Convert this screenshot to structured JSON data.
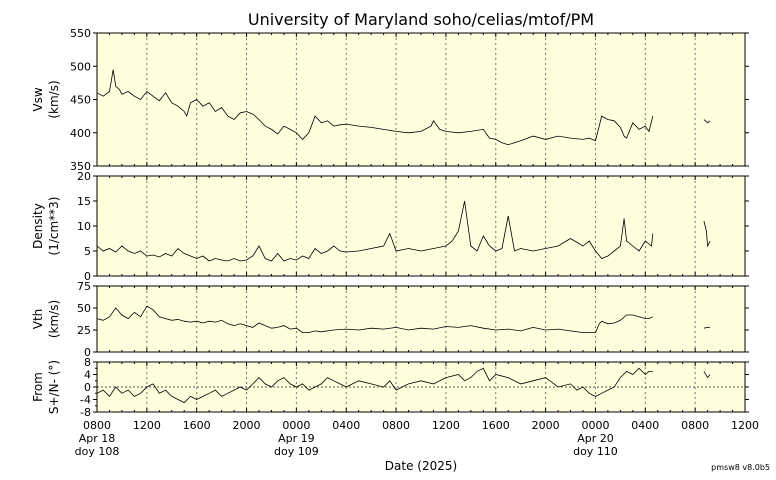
{
  "chart_data": {
    "type": "line",
    "title": "University of Maryland  soho/celias/mtof/PM",
    "xlabel": "Date (2025)",
    "version_label": "pmsw8 v8.0b5",
    "x_range_hours": [
      0,
      52
    ],
    "x_ticks": [
      {
        "hour": 0,
        "label": "0800",
        "sub": [
          "Apr 18",
          "doy 108"
        ]
      },
      {
        "hour": 4,
        "label": "1200"
      },
      {
        "hour": 8,
        "label": "1600"
      },
      {
        "hour": 12,
        "label": "2000"
      },
      {
        "hour": 16,
        "label": "0000",
        "sub": [
          "Apr 19",
          "doy 109"
        ]
      },
      {
        "hour": 20,
        "label": "0400"
      },
      {
        "hour": 24,
        "label": "0800"
      },
      {
        "hour": 28,
        "label": "1200"
      },
      {
        "hour": 32,
        "label": "1600"
      },
      {
        "hour": 36,
        "label": "2000"
      },
      {
        "hour": 40,
        "label": "0000",
        "sub": [
          "Apr 20",
          "doy 110"
        ]
      },
      {
        "hour": 44,
        "label": "0400"
      },
      {
        "hour": 48,
        "label": "0800"
      },
      {
        "hour": 52,
        "label": "1200"
      }
    ],
    "panels": [
      {
        "ylabel": [
          "Vsw",
          "(km/s)"
        ],
        "ylim": [
          350,
          550
        ],
        "yticks": [
          350,
          400,
          450,
          500,
          550
        ],
        "zero_line": false,
        "series": [
          {
            "x": [
              0,
              0.5,
              1,
              1.3,
              1.5,
              1.8,
              2,
              2.5,
              3,
              3.5,
              4,
              4.5,
              5,
              5.5,
              6,
              6.5,
              7,
              7.2,
              7.5,
              8,
              8.5,
              9,
              9.5,
              10,
              10.5,
              11,
              11.5,
              12,
              12.5,
              13,
              13.5,
              14,
              14.5,
              15,
              15.5,
              16,
              16.5,
              17,
              17.5,
              18,
              18.5,
              19,
              19.5,
              20,
              21,
              22,
              23,
              24,
              25,
              26,
              26.8,
              27,
              27.5,
              28,
              29,
              30,
              31,
              31.5,
              32,
              32.5,
              33,
              34,
              35,
              36,
              37,
              38,
              39,
              39.5,
              40,
              40.3,
              40.5,
              41,
              41.5,
              42,
              42.3,
              42.5,
              43,
              43.5,
              44,
              44.3,
              44.6
            ],
            "y": [
              460,
              455,
              462,
              495,
              470,
              465,
              458,
              462,
              455,
              450,
              462,
              455,
              448,
              460,
              445,
              440,
              432,
              425,
              445,
              450,
              440,
              445,
              432,
              438,
              425,
              420,
              430,
              432,
              428,
              420,
              410,
              405,
              398,
              410,
              405,
              400,
              390,
              400,
              425,
              415,
              418,
              410,
              412,
              413,
              410,
              408,
              405,
              402,
              400,
              402,
              410,
              418,
              405,
              402,
              400,
              402,
              405,
              392,
              390,
              385,
              382,
              388,
              395,
              390,
              395,
              392,
              390,
              392,
              388,
              410,
              425,
              420,
              418,
              408,
              395,
              392,
              415,
              405,
              410,
              402,
              425
            ]
          },
          {
            "x": [
              48.7,
              49,
              49.2
            ],
            "y": [
              420,
              415,
              418
            ]
          }
        ]
      },
      {
        "ylabel": [
          "Density",
          "(1/cm**3)"
        ],
        "ylim": [
          0,
          20
        ],
        "yticks": [
          0,
          5,
          10,
          15,
          20
        ],
        "zero_line": false,
        "series": [
          {
            "x": [
              0,
              0.5,
              1,
              1.5,
              2,
              2.5,
              3,
              3.5,
              4,
              4.5,
              5,
              5.5,
              6,
              6.5,
              7,
              7.5,
              8,
              8.5,
              9,
              9.5,
              10,
              10.5,
              11,
              11.5,
              12,
              12.5,
              13,
              13.5,
              14,
              14.5,
              15,
              15.5,
              16,
              16.5,
              17,
              17.5,
              18,
              18.5,
              19,
              19.5,
              20,
              21,
              22,
              23,
              23.5,
              24,
              25,
              26,
              27,
              28,
              28.5,
              29,
              29.5,
              30,
              30.5,
              31,
              31.5,
              32,
              32.5,
              33,
              33.5,
              34,
              35,
              36,
              37,
              38,
              39,
              39.5,
              40,
              40.5,
              41,
              41.5,
              42,
              42.3,
              42.5,
              43,
              43.5,
              44,
              44.5,
              44.6
            ],
            "y": [
              6,
              5,
              5.5,
              4.8,
              6,
              5,
              4.5,
              5,
              4,
              4.2,
              3.8,
              4.5,
              4,
              5.5,
              4.5,
              4,
              3.5,
              4,
              3,
              3.5,
              3.2,
              3,
              3.5,
              3,
              3.2,
              4,
              6,
              3.5,
              3,
              4.5,
              3,
              3.5,
              3.2,
              4,
              3.5,
              5.5,
              4.5,
              5,
              6,
              5,
              4.8,
              5,
              5.5,
              6,
              8.5,
              5,
              5.5,
              5,
              5.5,
              6,
              7,
              9,
              15,
              6,
              5,
              8,
              6,
              5,
              5.5,
              12,
              5,
              5.5,
              5,
              5.5,
              6,
              7.5,
              6,
              7,
              5,
              3.5,
              4,
              5,
              6,
              11.5,
              7,
              6,
              5,
              7,
              6,
              8.5
            ]
          },
          {
            "x": [
              48.7,
              48.9,
              49,
              49.2
            ],
            "y": [
              11,
              9,
              6,
              7
            ]
          }
        ]
      },
      {
        "ylabel": [
          "Vth",
          "(km/s)"
        ],
        "ylim": [
          0,
          75
        ],
        "yticks": [
          0,
          25,
          50,
          75
        ],
        "zero_line": false,
        "series": [
          {
            "x": [
              0,
              0.5,
              1,
              1.5,
              2,
              2.5,
              3,
              3.5,
              4,
              4.5,
              5,
              5.5,
              6,
              6.5,
              7,
              7.5,
              8,
              8.5,
              9,
              9.5,
              10,
              10.5,
              11,
              11.5,
              12,
              12.5,
              13,
              13.5,
              14,
              14.5,
              15,
              15.5,
              16,
              16.5,
              17,
              17.5,
              18,
              19,
              20,
              21,
              22,
              23,
              24,
              25,
              26,
              27,
              28,
              29,
              30,
              31,
              32,
              33,
              34,
              35,
              36,
              37,
              38,
              39,
              39.5,
              40,
              40.3,
              40.5,
              41,
              41.5,
              42,
              42.5,
              43,
              43.5,
              44,
              44.3,
              44.6
            ],
            "y": [
              38,
              36,
              40,
              50,
              42,
              38,
              45,
              40,
              52,
              48,
              40,
              38,
              36,
              37,
              35,
              34,
              35,
              33,
              35,
              34,
              36,
              32,
              30,
              32,
              30,
              28,
              33,
              30,
              27,
              28,
              30,
              26,
              27,
              22,
              22,
              24,
              23,
              25,
              26,
              25,
              27,
              26,
              28,
              25,
              27,
              26,
              29,
              28,
              30,
              27,
              25,
              26,
              24,
              28,
              25,
              26,
              24,
              22,
              22,
              22,
              32,
              35,
              32,
              33,
              36,
              42,
              42,
              40,
              38,
              38,
              40
            ]
          },
          {
            "x": [
              48.7,
              49,
              49.2
            ],
            "y": [
              27,
              28,
              28
            ]
          }
        ]
      },
      {
        "ylabel": [
          "From",
          "S+/N- (°)"
        ],
        "ylim": [
          -8,
          8
        ],
        "yticks": [
          -8,
          -4,
          0,
          4,
          8
        ],
        "minor_yticks": [
          -6,
          -2,
          2,
          6
        ],
        "zero_line": true,
        "series": [
          {
            "x": [
              0,
              0.5,
              1,
              1.5,
              2,
              2.5,
              3,
              3.5,
              4,
              4.5,
              5,
              5.5,
              6,
              6.5,
              7,
              7.5,
              8,
              8.5,
              9,
              9.5,
              10,
              10.5,
              11,
              11.5,
              12,
              12.5,
              13,
              13.5,
              14,
              14.5,
              15,
              15.5,
              16,
              16.5,
              17,
              17.5,
              18,
              18.5,
              19,
              19.5,
              20,
              21,
              22,
              23,
              23.5,
              24,
              24.5,
              25,
              26,
              27,
              28,
              29,
              29.5,
              30,
              30.5,
              31,
              31.5,
              32,
              33,
              34,
              35,
              36,
              37,
              38,
              38.5,
              39,
              39.5,
              40,
              40.5,
              41,
              41.5,
              42,
              42.5,
              43,
              43.5,
              44,
              44.3,
              44.6
            ],
            "y": [
              -2,
              -1,
              -3,
              0,
              -2,
              -1,
              -3,
              -2,
              0,
              1,
              -2,
              -1,
              -3,
              -4,
              -5,
              -3,
              -4,
              -3,
              -2,
              -1,
              -3,
              -2,
              -1,
              0,
              -1,
              1,
              3,
              1,
              0,
              2,
              3,
              1,
              0,
              1,
              -1,
              0,
              1,
              3,
              2,
              1,
              0,
              2,
              1,
              0,
              2,
              -1,
              0,
              1,
              2,
              1,
              3,
              4,
              2,
              3,
              5,
              6,
              2,
              4,
              3,
              1,
              2,
              3,
              0,
              1,
              -1,
              0,
              -2,
              -3,
              -2,
              -1,
              0,
              3,
              5,
              4,
              6,
              4,
              5,
              5
            ]
          },
          {
            "x": [
              48.7,
              49,
              49.2
            ],
            "y": [
              5,
              3,
              4
            ]
          }
        ]
      }
    ]
  }
}
